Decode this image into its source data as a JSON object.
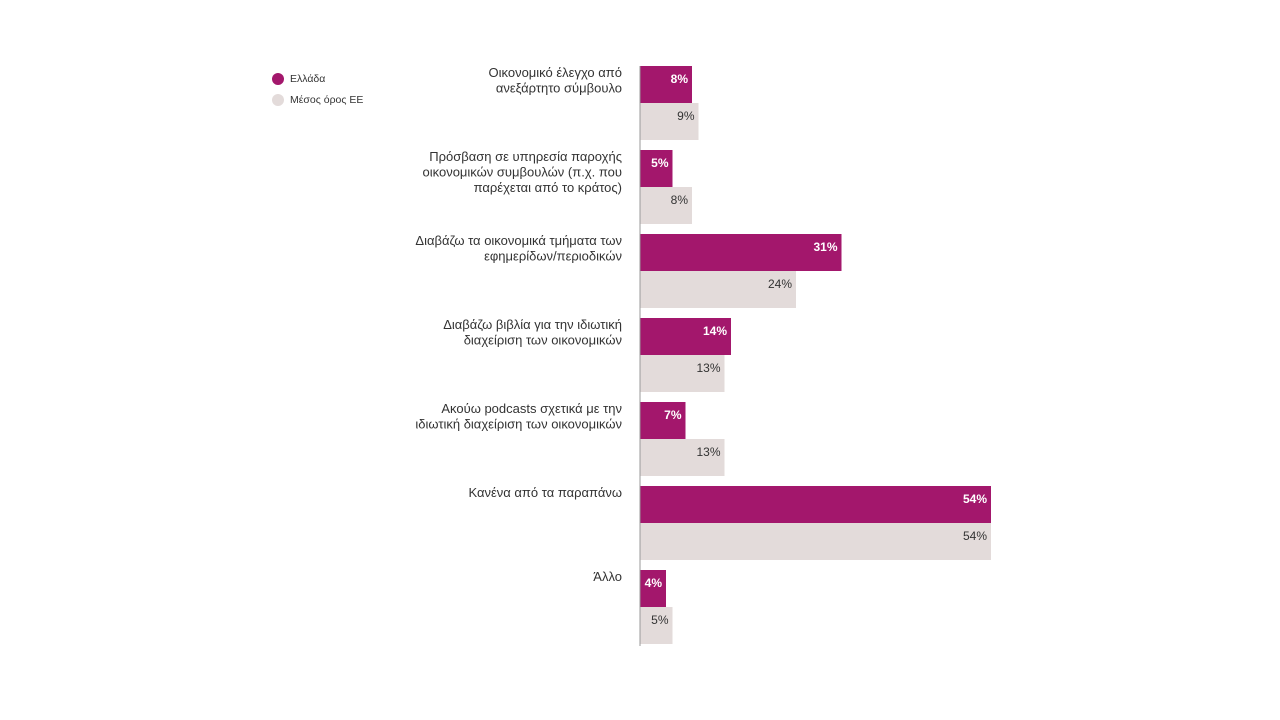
{
  "legend": {
    "items": [
      {
        "label": "Ελλάδα",
        "color": "#a3176c"
      },
      {
        "label": "Μέσος όρος ΕΕ",
        "color": "#e3dbda"
      }
    ]
  },
  "chart_data": {
    "type": "bar",
    "orientation": "horizontal",
    "title": "",
    "xlabel": "",
    "ylabel": "",
    "legend_position": "top-left",
    "grid": false,
    "xlim": [
      0,
      54
    ],
    "categories": [
      [
        "Οικονομικό έλεγχο από",
        "ανεξάρτητο σύμβουλο"
      ],
      [
        "Πρόσβαση σε υπηρεσία παροχής",
        "οικονομικών συμβουλών (π.χ. που",
        "παρέχεται από το κράτος)"
      ],
      [
        "Διαβάζω τα οικονομικά τμήματα των",
        "εφημερίδων/περιοδικών"
      ],
      [
        "Διαβάζω βιβλία για την ιδιωτική",
        "διαχείριση των οικονομικών"
      ],
      [
        "Ακούω podcasts σχετικά με την",
        "ιδιωτική διαχείριση των οικονομικών"
      ],
      [
        "Κανένα από τα παραπάνω"
      ],
      [
        "Άλλο"
      ]
    ],
    "series": [
      {
        "name": "Ελλάδα",
        "color": "#a3176c",
        "values": [
          8,
          5,
          31,
          14,
          7,
          54,
          4
        ],
        "labels": [
          "8%",
          "5%",
          "31%",
          "14%",
          "7%",
          "54%",
          "4%"
        ]
      },
      {
        "name": "Μέσος όρος ΕΕ",
        "color": "#e3dbda",
        "values": [
          9,
          8,
          24,
          13,
          13,
          54,
          5
        ],
        "labels": [
          "9%",
          "8%",
          "24%",
          "13%",
          "13%",
          "54%",
          "5%"
        ]
      }
    ]
  }
}
